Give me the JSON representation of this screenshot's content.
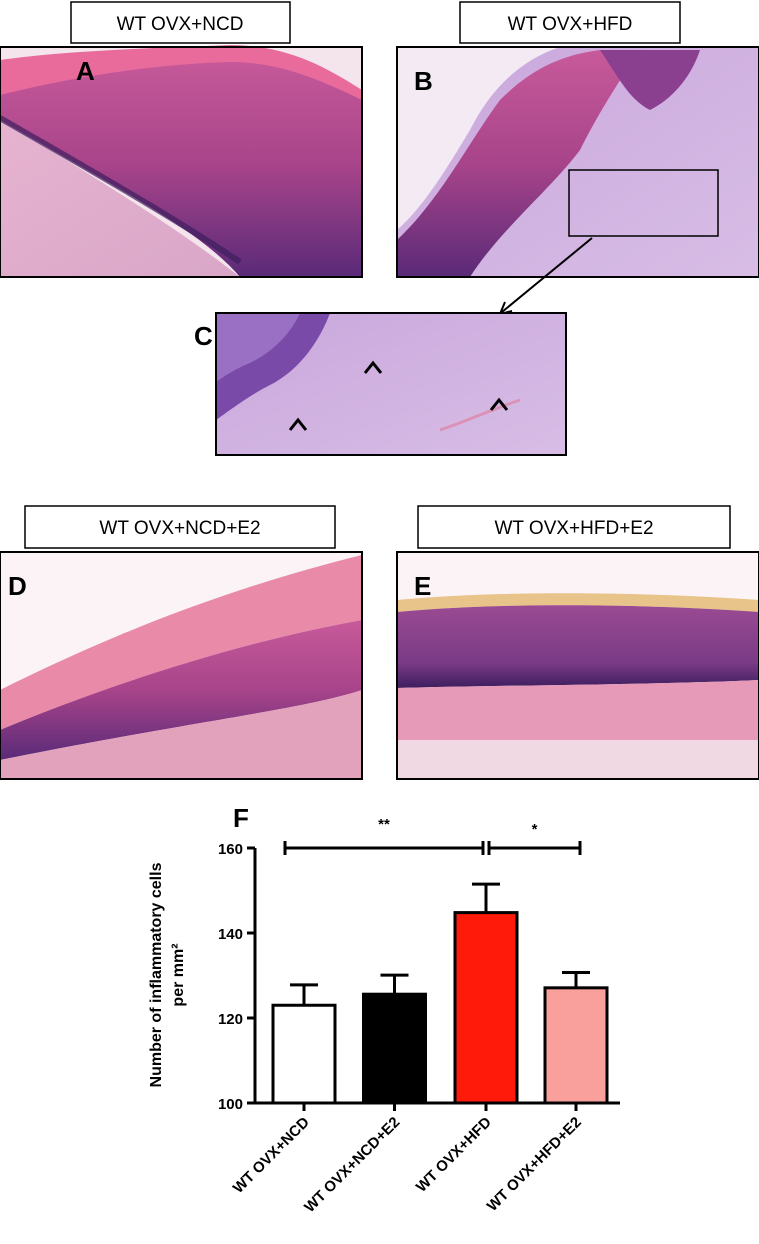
{
  "panels": {
    "a": {
      "letter": "A",
      "title": "WT OVX+NCD"
    },
    "b": {
      "letter": "B",
      "title": "WT OVX+HFD"
    },
    "c": {
      "letter": "C"
    },
    "d": {
      "letter": "D",
      "title": "WT OVX+NCD+E2"
    },
    "e": {
      "letter": "E",
      "title": "WT OVX+HFD+E2"
    }
  },
  "chart_data": {
    "type": "bar",
    "panel_letter": "F",
    "categories": [
      "WT OVX+NCD",
      "WT OVX+NCD+E2",
      "WT OVX+HFD",
      "WT OVX+HFD+E2"
    ],
    "values": [
      123.0,
      125.6,
      144.8,
      127.1
    ],
    "error_upper": [
      127.8,
      130.1,
      151.5,
      130.7
    ],
    "colors": [
      "#ffffff",
      "#000000",
      "#ff1a0a",
      "#f9a09c"
    ],
    "ylabel_line1": "Number of inflammatory cells",
    "ylabel_line2": "per mm²",
    "ylim": [
      100,
      160
    ],
    "yticks": [
      "100",
      "120",
      "140",
      "160"
    ],
    "significance": [
      {
        "from": "WT OVX+NCD",
        "to": "WT OVX+HFD",
        "label": "**"
      },
      {
        "from": "WT OVX+HFD",
        "to": "WT OVX+HFD+E2",
        "label": "*"
      }
    ],
    "grid": false
  }
}
